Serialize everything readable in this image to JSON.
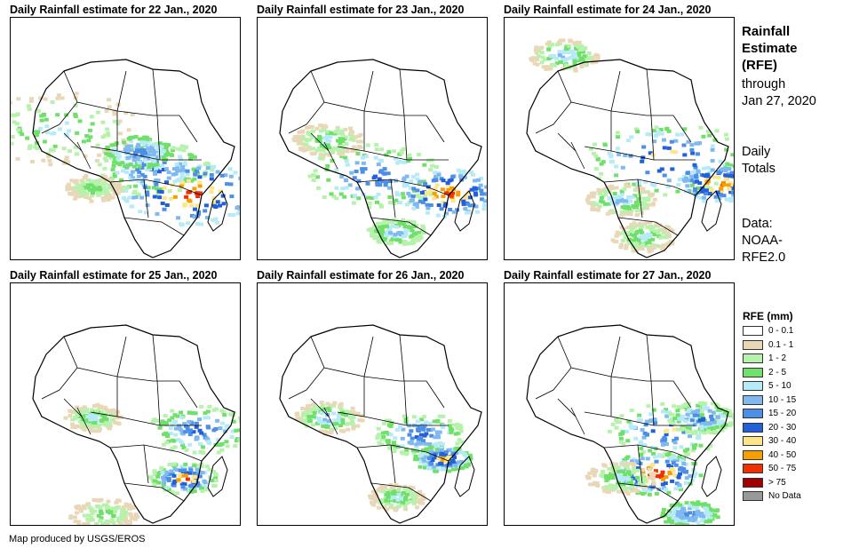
{
  "panels": [
    {
      "title": "Daily Rainfall estimate for 22 Jan., 2020",
      "id": "p22"
    },
    {
      "title": "Daily Rainfall estimate for 23 Jan., 2020",
      "id": "p23"
    },
    {
      "title": "Daily Rainfall estimate for 24 Jan., 2020",
      "id": "p24"
    },
    {
      "title": "Daily Rainfall estimate for 25 Jan., 2020",
      "id": "p25"
    },
    {
      "title": "Daily Rainfall estimate for 26 Jan., 2020",
      "id": "p26"
    },
    {
      "title": "Daily Rainfall estimate for 27 Jan., 2020",
      "id": "p27"
    }
  ],
  "side": {
    "title_line1": "Rainfall",
    "title_line2": "Estimate",
    "title_line3": "(RFE)",
    "through": "through",
    "date": "Jan 27, 2020",
    "daily1": "Daily",
    "daily2": "Totals",
    "data1": "Data:",
    "data2": "NOAA-",
    "data3": "RFE2.0"
  },
  "legend": {
    "title": "RFE (mm)",
    "items": [
      {
        "label": "0 - 0.1",
        "color": "#ffffff"
      },
      {
        "label": "0.1 - 1",
        "color": "#e8d8b8"
      },
      {
        "label": "1 - 2",
        "color": "#b7f2ad"
      },
      {
        "label": "2 - 5",
        "color": "#6fe06a"
      },
      {
        "label": "5 - 10",
        "color": "#b6eaf7"
      },
      {
        "label": "10 - 15",
        "color": "#7fb9ef"
      },
      {
        "label": "15 - 20",
        "color": "#4d8fe6"
      },
      {
        "label": "20 - 30",
        "color": "#2160d6"
      },
      {
        "label": "30 - 40",
        "color": "#ffe58a"
      },
      {
        "label": "40 - 50",
        "color": "#f5a000"
      },
      {
        "label": "50 - 75",
        "color": "#f03000"
      },
      {
        "label": "> 75",
        "color": "#a00000"
      },
      {
        "label": "No Data",
        "color": "#999999"
      }
    ]
  },
  "credit": "Map produced by USGS/EROS"
}
